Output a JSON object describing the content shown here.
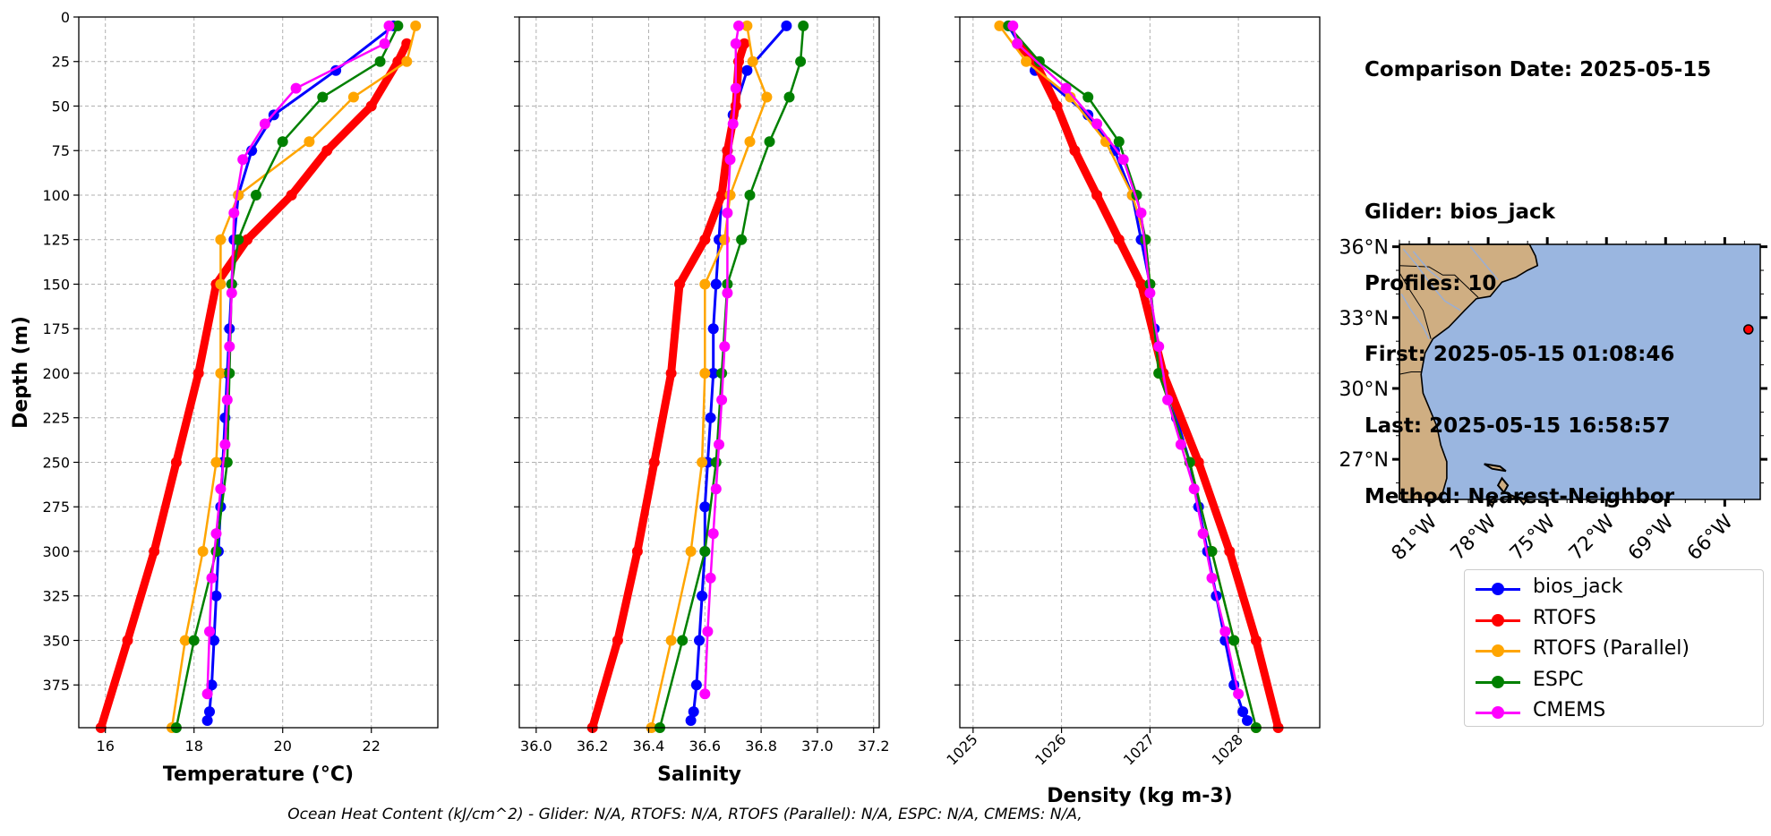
{
  "chart_data": [
    {
      "type": "line",
      "title": "",
      "xlabel": "Temperature (°C)",
      "ylabel": "Depth (m)",
      "xlim": [
        15.4,
        23.5
      ],
      "ylim": [
        399,
        0
      ],
      "xticks": [
        16,
        18,
        20,
        22
      ],
      "yticks": [
        0,
        25,
        50,
        75,
        100,
        125,
        150,
        175,
        200,
        225,
        250,
        275,
        300,
        325,
        350,
        375
      ],
      "grid": true,
      "series": [
        {
          "name": "bios_jack",
          "color": "#0000ff",
          "x": [
            22.5,
            21.2,
            19.8,
            19.3,
            19.0,
            18.9,
            18.85,
            18.8,
            18.75,
            18.7,
            18.65,
            18.6,
            18.55,
            18.5,
            18.45,
            18.4,
            18.35,
            18.3
          ],
          "y": [
            5,
            30,
            55,
            75,
            100,
            125,
            150,
            175,
            200,
            225,
            250,
            275,
            300,
            325,
            350,
            375,
            390,
            395
          ]
        },
        {
          "name": "RTOFS",
          "color": "#ff0000",
          "x": [
            22.8,
            22.6,
            22.0,
            21.0,
            20.2,
            19.2,
            18.5,
            18.1,
            17.6,
            17.1,
            16.5,
            15.9
          ],
          "y": [
            15,
            25,
            50,
            75,
            100,
            125,
            150,
            200,
            250,
            300,
            350,
            399
          ]
        },
        {
          "name": "RTOFS (Parallel)",
          "color": "#ffa500",
          "x": [
            23.0,
            22.8,
            21.6,
            20.6,
            19.0,
            18.6,
            18.6,
            18.6,
            18.5,
            18.2,
            17.8,
            17.5
          ],
          "y": [
            5,
            25,
            45,
            70,
            100,
            125,
            150,
            200,
            250,
            300,
            350,
            399
          ]
        },
        {
          "name": "ESPC",
          "color": "#008000",
          "x": [
            22.6,
            22.2,
            20.9,
            20.0,
            19.4,
            19.0,
            18.85,
            18.8,
            18.75,
            18.5,
            18.0,
            17.6
          ],
          "y": [
            5,
            25,
            45,
            70,
            100,
            125,
            150,
            200,
            250,
            300,
            350,
            399
          ]
        },
        {
          "name": "CMEMS",
          "color": "#ff00ff",
          "x": [
            22.4,
            22.3,
            20.3,
            19.6,
            19.1,
            18.9,
            18.85,
            18.8,
            18.75,
            18.7,
            18.6,
            18.5,
            18.4,
            18.35,
            18.3
          ],
          "y": [
            5,
            15,
            40,
            60,
            80,
            110,
            155,
            185,
            215,
            240,
            265,
            290,
            315,
            345,
            380
          ]
        }
      ]
    },
    {
      "type": "line",
      "title": "",
      "xlabel": "Salinity",
      "ylabel": "",
      "xlim": [
        35.94,
        37.22
      ],
      "ylim": [
        399,
        0
      ],
      "xticks": [
        36.0,
        36.2,
        36.4,
        36.6,
        36.8,
        37.0,
        37.2
      ],
      "grid": true,
      "series": [
        {
          "name": "bios_jack",
          "color": "#0000ff",
          "x": [
            36.89,
            36.75,
            36.7,
            36.68,
            36.66,
            36.65,
            36.64,
            36.63,
            36.63,
            36.62,
            36.61,
            36.6,
            36.6,
            36.59,
            36.58,
            36.57,
            36.56,
            36.55
          ],
          "y": [
            5,
            30,
            55,
            75,
            100,
            125,
            150,
            175,
            200,
            225,
            250,
            275,
            300,
            325,
            350,
            375,
            390,
            395
          ]
        },
        {
          "name": "RTOFS",
          "color": "#ff0000",
          "x": [
            36.74,
            36.72,
            36.71,
            36.68,
            36.66,
            36.6,
            36.51,
            36.48,
            36.42,
            36.36,
            36.29,
            36.2
          ],
          "y": [
            15,
            25,
            50,
            75,
            100,
            125,
            150,
            200,
            250,
            300,
            350,
            399
          ]
        },
        {
          "name": "RTOFS (Parallel)",
          "color": "#ffa500",
          "x": [
            36.75,
            36.77,
            36.82,
            36.76,
            36.69,
            36.67,
            36.6,
            36.6,
            36.59,
            36.55,
            36.48,
            36.41
          ],
          "y": [
            5,
            25,
            45,
            70,
            100,
            125,
            150,
            200,
            250,
            300,
            350,
            399
          ]
        },
        {
          "name": "ESPC",
          "color": "#008000",
          "x": [
            36.95,
            36.94,
            36.9,
            36.83,
            36.76,
            36.73,
            36.68,
            36.66,
            36.64,
            36.6,
            36.52,
            36.44
          ],
          "y": [
            5,
            25,
            45,
            70,
            100,
            125,
            150,
            200,
            250,
            300,
            350,
            399
          ]
        },
        {
          "name": "CMEMS",
          "color": "#ff00ff",
          "x": [
            36.72,
            36.71,
            36.71,
            36.7,
            36.69,
            36.68,
            36.68,
            36.67,
            36.66,
            36.65,
            36.64,
            36.63,
            36.62,
            36.61,
            36.6
          ],
          "y": [
            5,
            15,
            40,
            60,
            80,
            110,
            155,
            185,
            215,
            240,
            265,
            290,
            315,
            345,
            380
          ]
        }
      ]
    },
    {
      "type": "line",
      "title": "",
      "xlabel": "Density (kg m-3)",
      "ylabel": "",
      "xlim": [
        1024.85,
        1028.92
      ],
      "ylim": [
        399,
        0
      ],
      "xticks": [
        1025,
        1026,
        1027,
        1028
      ],
      "grid": true,
      "series": [
        {
          "name": "bios_jack",
          "color": "#0000ff",
          "x": [
            1025.4,
            1025.7,
            1026.3,
            1026.6,
            1026.8,
            1026.9,
            1027.0,
            1027.05,
            1027.15,
            1027.3,
            1027.45,
            1027.55,
            1027.65,
            1027.75,
            1027.85,
            1027.95,
            1028.05,
            1028.1
          ],
          "y": [
            5,
            30,
            55,
            75,
            100,
            125,
            150,
            175,
            200,
            225,
            250,
            275,
            300,
            325,
            350,
            375,
            390,
            395
          ]
        },
        {
          "name": "RTOFS",
          "color": "#ff0000",
          "x": [
            1025.5,
            1025.7,
            1025.95,
            1026.15,
            1026.4,
            1026.65,
            1026.9,
            1027.15,
            1027.55,
            1027.9,
            1028.2,
            1028.45
          ],
          "y": [
            15,
            25,
            50,
            75,
            100,
            125,
            150,
            200,
            250,
            300,
            350,
            399
          ]
        },
        {
          "name": "RTOFS (Parallel)",
          "color": "#ffa500",
          "x": [
            1025.3,
            1025.6,
            1026.1,
            1026.5,
            1026.8,
            1026.95,
            1027.0,
            1027.1,
            1027.45,
            1027.7,
            1027.95,
            1028.2
          ],
          "y": [
            5,
            25,
            45,
            70,
            100,
            125,
            150,
            200,
            250,
            300,
            350,
            399
          ]
        },
        {
          "name": "ESPC",
          "color": "#008000",
          "x": [
            1025.4,
            1025.75,
            1026.3,
            1026.65,
            1026.85,
            1026.95,
            1027.0,
            1027.1,
            1027.45,
            1027.7,
            1027.95,
            1028.2
          ],
          "y": [
            5,
            25,
            45,
            70,
            100,
            125,
            150,
            200,
            250,
            300,
            350,
            399
          ]
        },
        {
          "name": "CMEMS",
          "color": "#ff00ff",
          "x": [
            1025.45,
            1025.5,
            1026.05,
            1026.4,
            1026.7,
            1026.9,
            1027.0,
            1027.1,
            1027.2,
            1027.35,
            1027.5,
            1027.6,
            1027.7,
            1027.85,
            1028.0
          ],
          "y": [
            5,
            15,
            40,
            60,
            80,
            110,
            155,
            185,
            215,
            240,
            265,
            290,
            315,
            345,
            380
          ]
        }
      ]
    }
  ],
  "info": {
    "lines": [
      "Comparison Date: 2025-05-15",
      "",
      "Glider: bios_jack",
      "Profiles: 10",
      "First: 2025-05-15 01:08:46",
      "Last: 2025-05-15 16:58:57",
      "Method: Nearest-Neighbor"
    ]
  },
  "map": {
    "lat_labels": [
      "36°N",
      "33°N",
      "30°N",
      "27°N"
    ],
    "lon_labels": [
      "81°W",
      "78°W",
      "75°W",
      "72°W",
      "69°W",
      "66°W"
    ],
    "ocean_color": "#9ab6e0",
    "land_color": "#cfae82",
    "glider_marker_color": "#ff0000"
  },
  "legend": {
    "items": [
      {
        "label": "bios_jack",
        "color": "#0000ff"
      },
      {
        "label": "RTOFS",
        "color": "#ff0000"
      },
      {
        "label": "RTOFS (Parallel)",
        "color": "#ffa500"
      },
      {
        "label": "ESPC",
        "color": "#008000"
      },
      {
        "label": "CMEMS",
        "color": "#ff00ff"
      }
    ]
  },
  "footer": {
    "text": "Ocean Heat Content (kJ/cm^2) - Glider: N/A,  RTOFS: N/A,  RTOFS (Parallel): N/A,  ESPC: N/A,  CMEMS: N/A,"
  }
}
